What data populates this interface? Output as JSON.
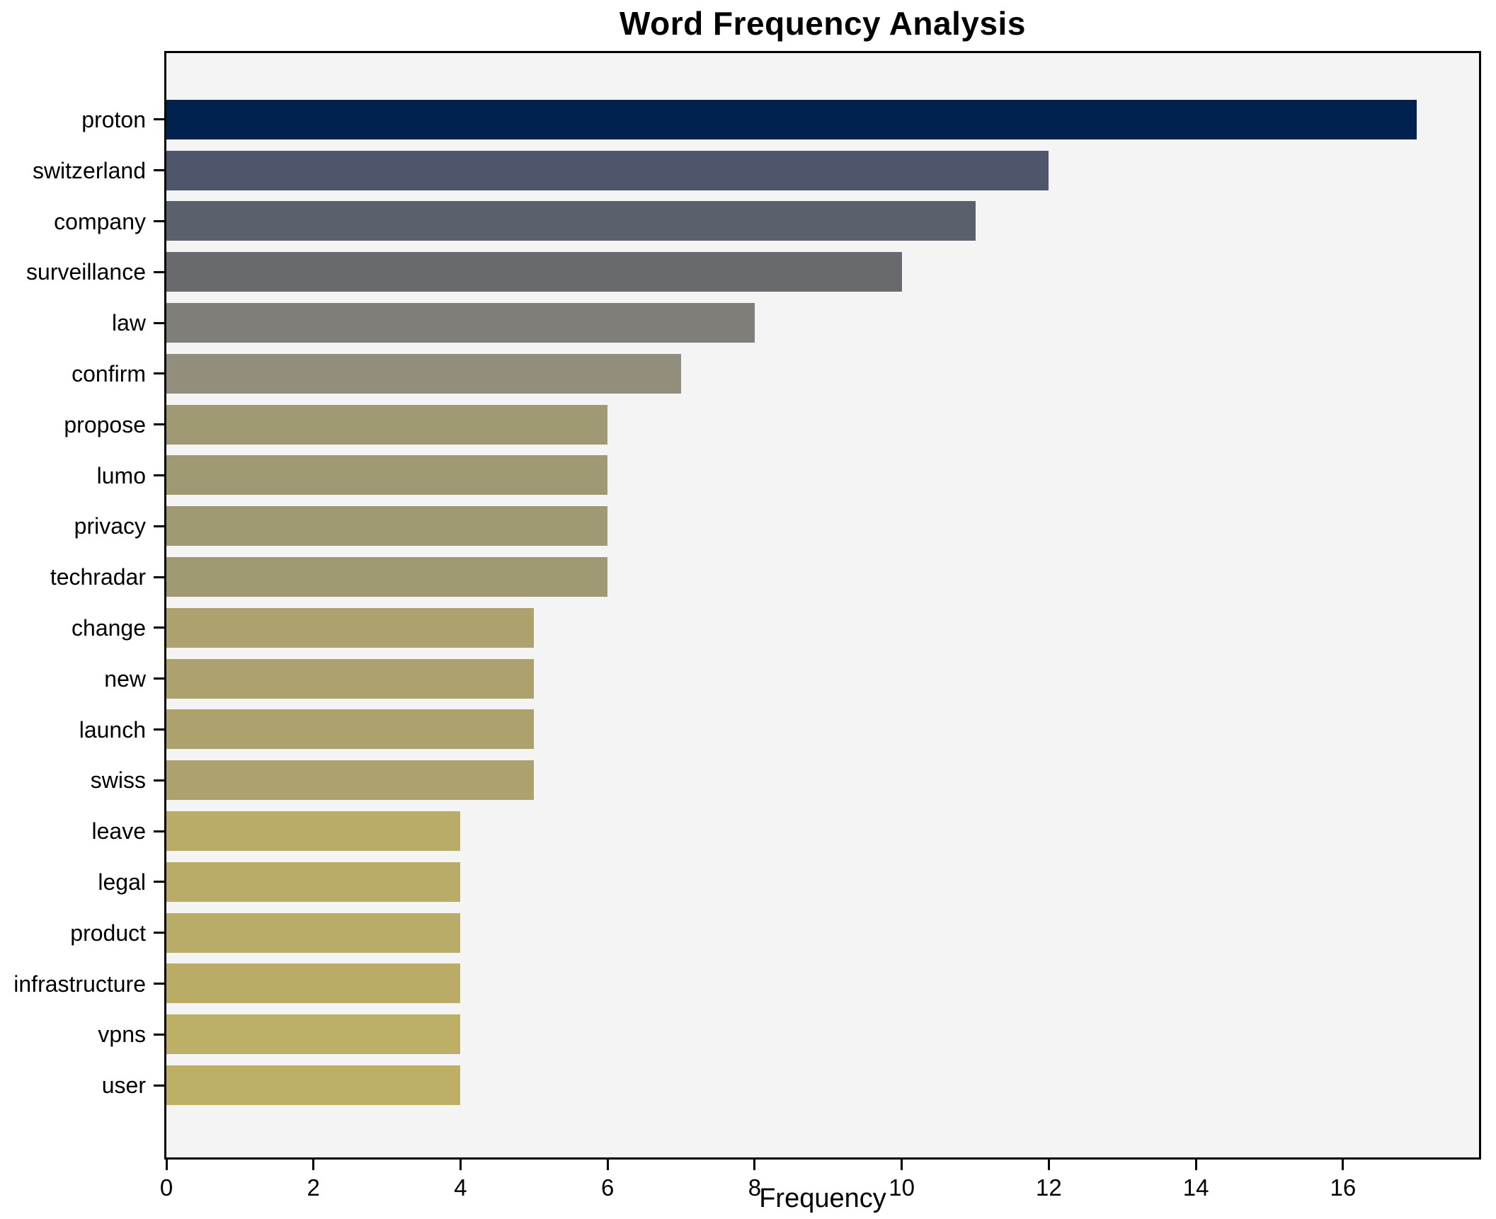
{
  "title": "Word Frequency Analysis",
  "chart_data": {
    "type": "bar",
    "orientation": "horizontal",
    "title": "Word Frequency Analysis",
    "xlabel": "Frequency",
    "ylabel": "",
    "xlim": [
      0,
      17.85
    ],
    "x_ticks": [
      0,
      2,
      4,
      6,
      8,
      10,
      12,
      14,
      16
    ],
    "grid": false,
    "legend": "none",
    "categories": [
      "proton",
      "switzerland",
      "company",
      "surveillance",
      "law",
      "confirm",
      "propose",
      "lumo",
      "privacy",
      "techradar",
      "change",
      "new",
      "launch",
      "swiss",
      "leave",
      "legal",
      "product",
      "infrastructure",
      "vpns",
      "user"
    ],
    "values": [
      17,
      12,
      11,
      10,
      8,
      7,
      6,
      6,
      6,
      6,
      5,
      5,
      5,
      5,
      4,
      4,
      4,
      4,
      4,
      4
    ],
    "bar_colors": [
      "#01224f",
      "#4d566b",
      "#5a616d",
      "#696a6e",
      "#807e79",
      "#928d7c",
      "#a09a74",
      "#a09a74",
      "#a09a74",
      "#a09a74",
      "#ada26e",
      "#ada26e",
      "#ada26e",
      "#ada26e",
      "#b9ab68",
      "#b9ab68",
      "#b9ab68",
      "#baac67",
      "#bdaf66",
      "#bdaf66"
    ]
  },
  "colors": {
    "page_bg": "#ffffff",
    "plot_bg": "#f5f4f5",
    "spine": "#000000",
    "text": "#000000"
  }
}
